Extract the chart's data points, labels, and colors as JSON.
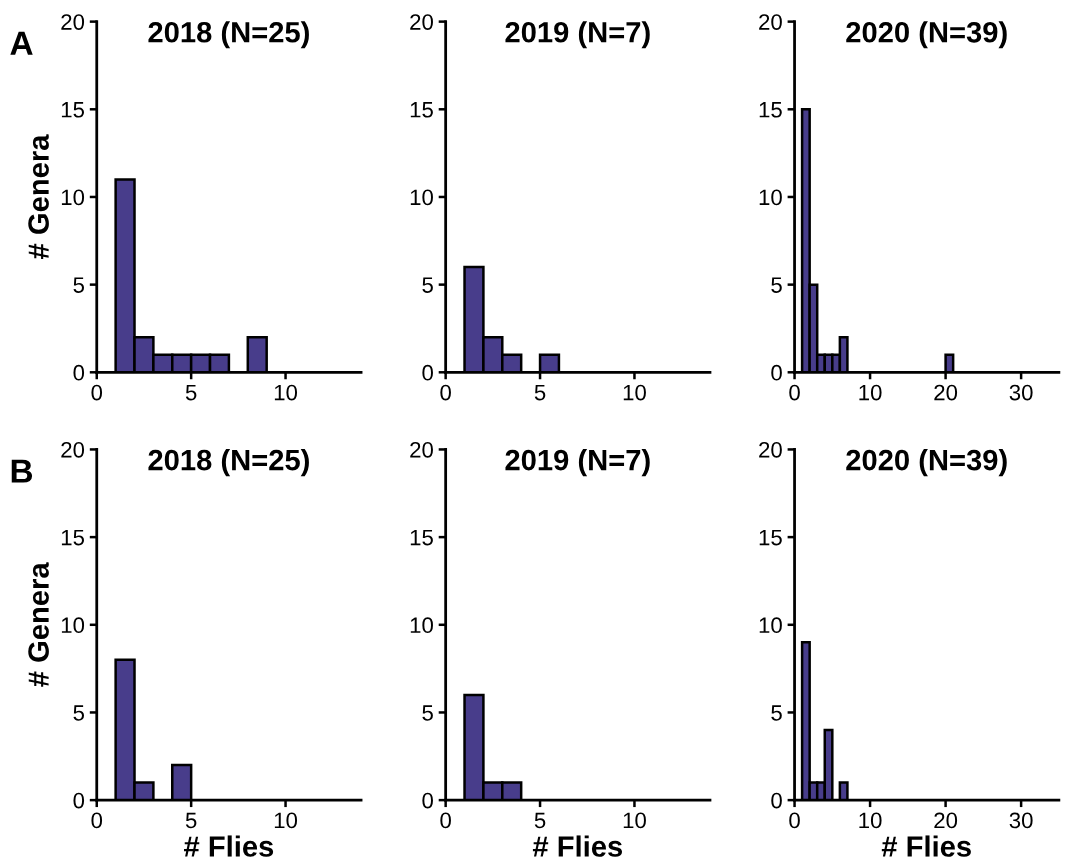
{
  "chart_data": [
    {
      "type": "histogram",
      "title": "2018 (N=25)",
      "ylabel": "# Genera",
      "annotations": [
        "A"
      ],
      "bins": [
        1,
        2,
        3,
        4,
        5,
        6,
        7,
        8,
        9
      ],
      "values": [
        11,
        2,
        1,
        1,
        1,
        1,
        0,
        2
      ],
      "color": "#483d8b",
      "xlim": [
        0,
        14
      ],
      "xticks": [
        0,
        5,
        10
      ],
      "ylim": [
        0,
        20
      ],
      "yticks": [
        0,
        5,
        10,
        15,
        20
      ],
      "grid": false
    },
    {
      "type": "histogram",
      "title": "2019 (N=7)",
      "bins": [
        1,
        2,
        3,
        4,
        5,
        6
      ],
      "values": [
        6,
        2,
        1,
        0,
        1
      ],
      "color": "#483d8b",
      "xlim": [
        0,
        14
      ],
      "xticks": [
        0,
        5,
        10
      ],
      "ylim": [
        0,
        20
      ],
      "yticks": [
        0,
        5,
        10,
        15,
        20
      ],
      "grid": false
    },
    {
      "type": "histogram",
      "title": "2020 (N=39)",
      "bins": [
        1,
        2,
        3,
        4,
        5,
        6,
        7,
        8,
        9,
        10,
        11,
        12,
        13,
        14,
        15,
        16,
        17,
        18,
        19,
        20,
        21
      ],
      "values": [
        15,
        5,
        1,
        1,
        1,
        2,
        0,
        0,
        0,
        0,
        0,
        0,
        0,
        0,
        0,
        0,
        0,
        0,
        0,
        1
      ],
      "color": "#483d8b",
      "xlim": [
        0,
        35
      ],
      "xticks": [
        0,
        10,
        20,
        30
      ],
      "ylim": [
        0,
        20
      ],
      "yticks": [
        0,
        5,
        10,
        15,
        20
      ],
      "grid": false
    },
    {
      "type": "histogram",
      "title": "2018 (N=25)",
      "xlabel": "# Flies",
      "ylabel": "# Genera",
      "annotations": [
        "B"
      ],
      "bins": [
        1,
        2,
        3,
        4,
        5
      ],
      "values": [
        8,
        1,
        0,
        2
      ],
      "color": "#483d8b",
      "xlim": [
        0,
        14
      ],
      "xticks": [
        0,
        5,
        10
      ],
      "ylim": [
        0,
        20
      ],
      "yticks": [
        0,
        5,
        10,
        15,
        20
      ],
      "grid": false
    },
    {
      "type": "histogram",
      "title": "2019 (N=7)",
      "xlabel": "# Flies",
      "bins": [
        1,
        2,
        3,
        4
      ],
      "values": [
        6,
        1,
        1
      ],
      "color": "#483d8b",
      "xlim": [
        0,
        14
      ],
      "xticks": [
        0,
        5,
        10
      ],
      "ylim": [
        0,
        20
      ],
      "yticks": [
        0,
        5,
        10,
        15,
        20
      ],
      "grid": false
    },
    {
      "type": "histogram",
      "title": "2020 (N=39)",
      "xlabel": "# Flies",
      "bins": [
        1,
        2,
        3,
        4,
        5,
        6,
        7
      ],
      "values": [
        9,
        1,
        1,
        4,
        0,
        1
      ],
      "color": "#483d8b",
      "xlim": [
        0,
        35
      ],
      "xticks": [
        0,
        10,
        20,
        30
      ],
      "ylim": [
        0,
        20
      ],
      "yticks": [
        0,
        5,
        10,
        15,
        20
      ],
      "grid": false
    }
  ]
}
